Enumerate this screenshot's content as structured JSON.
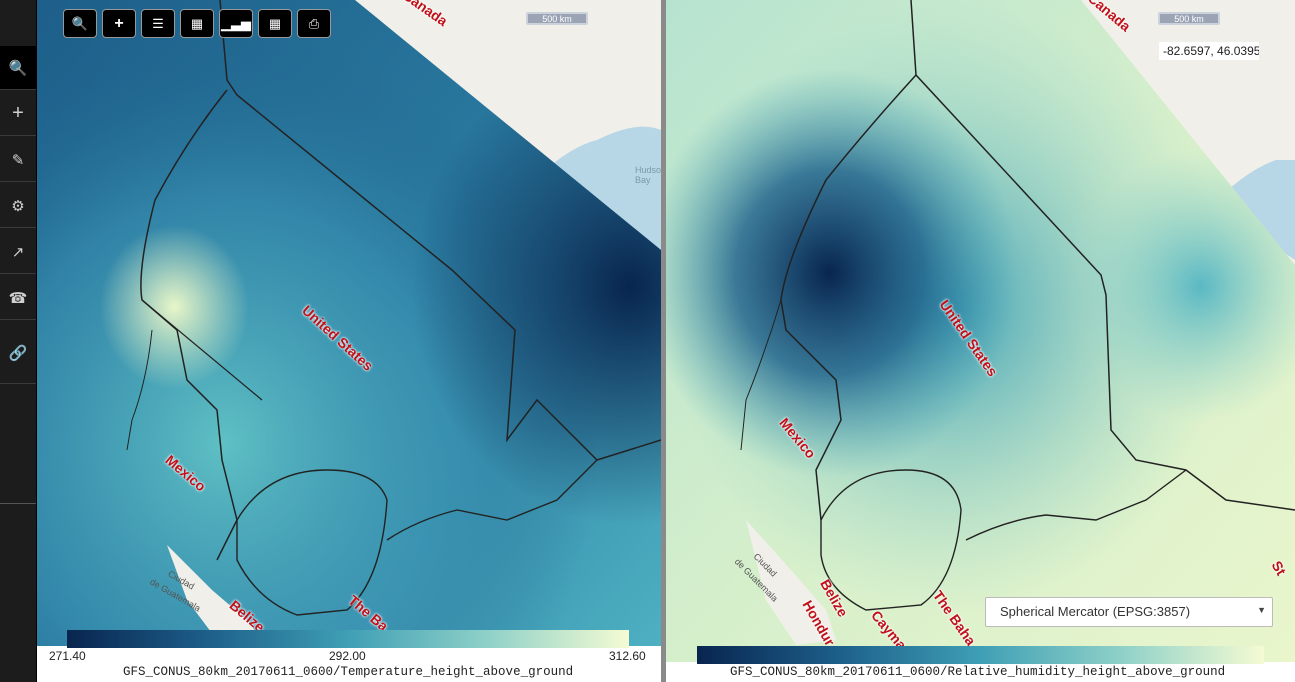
{
  "sidebar": {
    "buttons": [
      {
        "icon": "search-icon",
        "glyph": "🔍"
      },
      {
        "icon": "plus-icon",
        "glyph": "+"
      },
      {
        "icon": "pencil-icon",
        "glyph": "✎"
      },
      {
        "icon": "gear-icon",
        "glyph": "⚙"
      },
      {
        "icon": "export-icon",
        "glyph": "↗"
      },
      {
        "icon": "phone-icon",
        "glyph": "☎"
      },
      {
        "icon": "link-icon",
        "glyph": "🔗"
      }
    ]
  },
  "toolbar": {
    "buttons": [
      {
        "icon": "search-icon",
        "glyph": "🔍"
      },
      {
        "icon": "plus-icon",
        "glyph": "✚"
      },
      {
        "icon": "list-icon",
        "glyph": "☰"
      },
      {
        "icon": "film-icon",
        "glyph": "▦"
      },
      {
        "icon": "bar-chart-icon",
        "glyph": "📊"
      },
      {
        "icon": "calculator-icon",
        "glyph": "▤"
      },
      {
        "icon": "print-icon",
        "glyph": "⎙"
      }
    ]
  },
  "left_map": {
    "scale": "500 km",
    "labels": {
      "canada": "Canada",
      "united_states": "United States",
      "mexico": "Mexico",
      "belize": "Belize",
      "the_bahamas": "The Ba",
      "guatemala": "de Guatemala",
      "hudson_bay": "Hudson Bay",
      "ciudad": "Ciudad"
    },
    "legend": {
      "min": "271.40",
      "mid": "292.00",
      "max": "312.60",
      "colors": [
        "#08254f",
        "#1d5f8a",
        "#3f9fb5",
        "#8fd1c8",
        "#f5fbd3"
      ]
    },
    "layer_name": "GFS_CONUS_80km_20170611_0600/Temperature_height_above_ground"
  },
  "right_map": {
    "scale": "500 km",
    "coordinates": "-82.6597, 46.0395",
    "labels": {
      "canada": "Canada",
      "united_states": "United States",
      "mexico": "Mexico",
      "belize": "Belize",
      "honduras": "Hondur",
      "cayman": "Cayma",
      "the_bahamas": "The Baha",
      "st": "St",
      "guatemala": "de Guatemala",
      "ciudad": "Ciudad"
    },
    "projection": "Spherical Mercator (EPSG:3857)",
    "legend": {
      "colors": [
        "#08254f",
        "#1d5f8a",
        "#3f9fb5",
        "#8fd1c8",
        "#f5fbd3"
      ]
    },
    "layer_name": "GFS_CONUS_80km_20170611_0600/Relative_humidity_height_above_ground"
  }
}
